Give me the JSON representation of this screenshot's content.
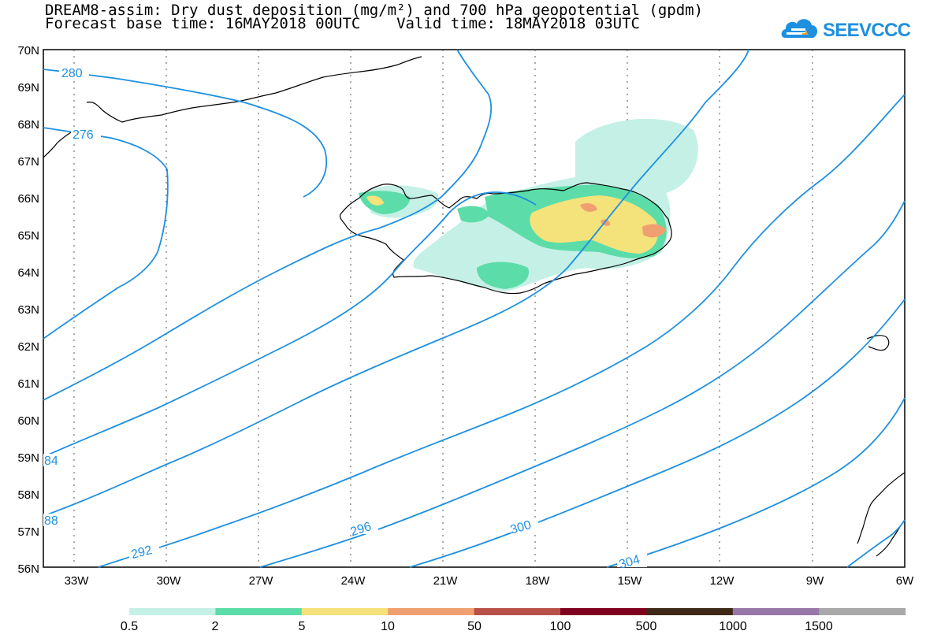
{
  "title": {
    "line1": "DREAM8-assim: Dry dust deposition (mg/m²) and 700 hPa geopotential (gpdm)",
    "line2": "Forecast base time: 16MAY2018 00UTC    Valid time: 18MAY2018 03UTC"
  },
  "logo": {
    "text": "SEEVCCC",
    "color": "#1e90e0"
  },
  "axes": {
    "lat_labels": [
      "70N",
      "69N",
      "68N",
      "67N",
      "66N",
      "65N",
      "64N",
      "63N",
      "62N",
      "61N",
      "60N",
      "59N",
      "58N",
      "57N",
      "56N"
    ],
    "lon_labels": [
      "33W",
      "30W",
      "27W",
      "24W",
      "21W",
      "18W",
      "15W",
      "12W",
      "9W",
      "6W"
    ],
    "lat_range": [
      56,
      70
    ],
    "lon_range": [
      -34,
      -6
    ],
    "grid": "dotted"
  },
  "contours": {
    "color": "#1e90e0",
    "labels": [
      "280",
      "276",
      "84",
      "88",
      "292",
      "296",
      "300",
      "304"
    ]
  },
  "colorbar": {
    "labels": [
      "0.5",
      "2",
      "5",
      "10",
      "50",
      "100",
      "500",
      "1000",
      "1500"
    ],
    "colors": [
      "#c4f0e6",
      "#5cdca8",
      "#f4e27a",
      "#f0a070",
      "#b85048",
      "#800020",
      "#402818",
      "#9878a8",
      "#a8a8a8"
    ]
  }
}
